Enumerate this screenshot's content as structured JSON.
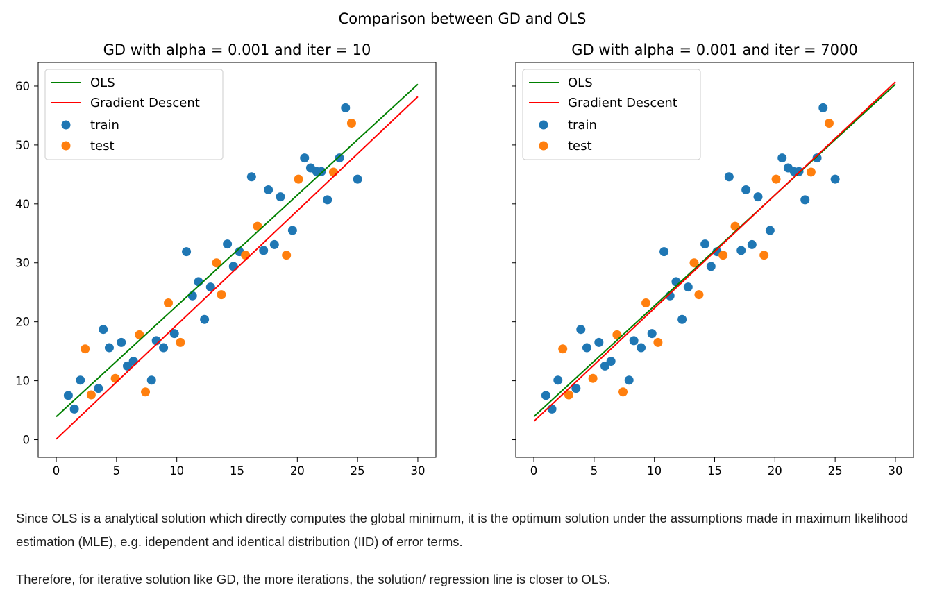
{
  "figure": {
    "suptitle": "Comparison between GD and OLS"
  },
  "legend_labels": {
    "ols": "OLS",
    "gd": "Gradient Descent",
    "train": "train",
    "test": "test"
  },
  "colors": {
    "ols": "#008000",
    "gd": "#ff0000",
    "train": "#1f77b4",
    "test": "#ff7f0e"
  },
  "chart_data": [
    {
      "type": "scatter",
      "title": "GD with alpha = 0.001 and iter = 10",
      "xlabel": "",
      "ylabel": "",
      "xlim": [
        -1.5,
        31.5
      ],
      "ylim": [
        -3,
        64
      ],
      "xticks": [
        0,
        5,
        10,
        15,
        20,
        25,
        30
      ],
      "yticks": [
        0,
        10,
        20,
        30,
        40,
        50,
        60
      ],
      "legend": "top-left",
      "lines": [
        {
          "name": "OLS",
          "x": [
            0,
            30
          ],
          "y": [
            3.9,
            60.3
          ]
        },
        {
          "name": "Gradient Descent",
          "x": [
            0,
            30
          ],
          "y": [
            0.1,
            58.2
          ]
        }
      ],
      "series": [
        {
          "name": "train",
          "x": [
            1.0,
            1.5,
            2.0,
            3.5,
            3.9,
            4.4,
            5.4,
            5.9,
            6.4,
            7.9,
            8.3,
            8.9,
            9.8,
            10.8,
            11.3,
            11.8,
            12.3,
            12.8,
            14.2,
            14.7,
            15.2,
            16.2,
            17.2,
            17.6,
            18.1,
            18.6,
            19.6,
            20.6,
            21.1,
            21.6,
            22.0,
            22.5,
            23.5,
            24.0,
            25.0
          ],
          "y": [
            7.5,
            5.2,
            10.1,
            8.7,
            18.7,
            15.6,
            16.5,
            12.5,
            13.3,
            10.1,
            16.8,
            15.6,
            18.0,
            31.9,
            24.4,
            26.8,
            20.4,
            25.9,
            33.2,
            29.4,
            31.9,
            44.6,
            32.1,
            42.4,
            33.1,
            41.2,
            35.5,
            47.8,
            46.1,
            45.5,
            45.5,
            40.7,
            47.8,
            56.3,
            44.2
          ]
        },
        {
          "name": "test",
          "x": [
            2.4,
            2.9,
            4.9,
            6.9,
            7.4,
            9.3,
            10.3,
            13.3,
            13.7,
            15.7,
            16.7,
            19.1,
            20.1,
            23.0,
            24.5
          ],
          "y": [
            15.4,
            7.6,
            10.4,
            17.8,
            8.1,
            23.2,
            16.5,
            30.0,
            24.6,
            31.3,
            36.2,
            31.3,
            44.2,
            45.4,
            53.7
          ]
        }
      ]
    },
    {
      "type": "scatter",
      "title": "GD with alpha = 0.001 and iter = 7000",
      "xlabel": "",
      "ylabel": "",
      "xlim": [
        -1.5,
        31.5
      ],
      "ylim": [
        -3,
        64
      ],
      "xticks": [
        0,
        5,
        10,
        15,
        20,
        25,
        30
      ],
      "yticks": [
        0,
        10,
        20,
        30,
        40,
        50,
        60
      ],
      "legend": "top-left",
      "lines": [
        {
          "name": "OLS",
          "x": [
            0,
            30
          ],
          "y": [
            3.9,
            60.3
          ]
        },
        {
          "name": "Gradient Descent",
          "x": [
            0,
            30
          ],
          "y": [
            3.1,
            60.7
          ]
        }
      ],
      "series": [
        {
          "name": "train",
          "x": [
            1.0,
            1.5,
            2.0,
            3.5,
            3.9,
            4.4,
            5.4,
            5.9,
            6.4,
            7.9,
            8.3,
            8.9,
            9.8,
            10.8,
            11.3,
            11.8,
            12.3,
            12.8,
            14.2,
            14.7,
            15.2,
            16.2,
            17.2,
            17.6,
            18.1,
            18.6,
            19.6,
            20.6,
            21.1,
            21.6,
            22.0,
            22.5,
            23.5,
            24.0,
            25.0
          ],
          "y": [
            7.5,
            5.2,
            10.1,
            8.7,
            18.7,
            15.6,
            16.5,
            12.5,
            13.3,
            10.1,
            16.8,
            15.6,
            18.0,
            31.9,
            24.4,
            26.8,
            20.4,
            25.9,
            33.2,
            29.4,
            31.9,
            44.6,
            32.1,
            42.4,
            33.1,
            41.2,
            35.5,
            47.8,
            46.1,
            45.5,
            45.5,
            40.7,
            47.8,
            56.3,
            44.2
          ]
        },
        {
          "name": "test",
          "x": [
            2.4,
            2.9,
            4.9,
            6.9,
            7.4,
            9.3,
            10.3,
            13.3,
            13.7,
            15.7,
            16.7,
            19.1,
            20.1,
            23.0,
            24.5
          ],
          "y": [
            15.4,
            7.6,
            10.4,
            17.8,
            8.1,
            23.2,
            16.5,
            30.0,
            24.6,
            31.3,
            36.2,
            31.3,
            44.2,
            45.4,
            53.7
          ]
        }
      ]
    }
  ],
  "text": {
    "paragraph1": "Since OLS is a analytical solution which directly computes the global minimum, it is the optimum solution under the assumptions made in maximum likelihood estimation (MLE), e.g. idependent and identical distribution (IID) of error terms.",
    "paragraph2": "Therefore, for iterative solution like GD, the more iterations, the solution/ regression line is closer to OLS."
  }
}
